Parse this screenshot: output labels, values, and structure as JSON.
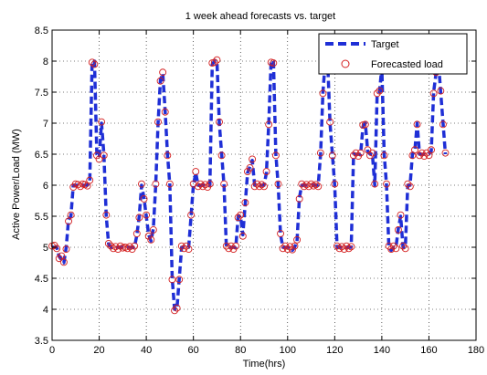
{
  "chart_data": {
    "type": "line",
    "title": "1 week ahead forecasts vs. target",
    "xlabel": "Time(hrs)",
    "ylabel": "Active Power/Load (MW)",
    "xlim": [
      0,
      180
    ],
    "ylim": [
      3.5,
      8.5
    ],
    "xticks": [
      0,
      20,
      40,
      60,
      80,
      100,
      120,
      140,
      160,
      180
    ],
    "yticks": [
      3.5,
      4,
      4.5,
      5,
      5.5,
      6,
      6.5,
      7,
      7.5,
      8,
      8.5
    ],
    "xtick_labels": [
      "0",
      "20",
      "40",
      "60",
      "80",
      "100",
      "120",
      "140",
      "160",
      "180"
    ],
    "ytick_labels": [
      "3.5",
      "4",
      "4.5",
      "5",
      "5.5",
      "6",
      "6.5",
      "7",
      "7.5",
      "8",
      "8.5"
    ],
    "grid": true,
    "legend_position": "top-right",
    "series": [
      {
        "name": "Target",
        "style": "dashed-line",
        "color": "#1f2fd6",
        "x": [
          0,
          1,
          2,
          3,
          4,
          5,
          6,
          7,
          8,
          9,
          10,
          11,
          12,
          13,
          14,
          15,
          16,
          17,
          18,
          19,
          20,
          21,
          22,
          23,
          24,
          25,
          26,
          27,
          28,
          29,
          30,
          31,
          32,
          33,
          34,
          35,
          36,
          37,
          38,
          39,
          40,
          41,
          42,
          43,
          44,
          45,
          46,
          47,
          48,
          49,
          50,
          51,
          52,
          53,
          54,
          55,
          56,
          57,
          58,
          59,
          60,
          61,
          62,
          63,
          64,
          65,
          66,
          67,
          68,
          69,
          70,
          71,
          72,
          73,
          74,
          75,
          76,
          77,
          78,
          79,
          80,
          81,
          82,
          83,
          84,
          85,
          86,
          87,
          88,
          89,
          90,
          91,
          92,
          93,
          94,
          95,
          96,
          97,
          98,
          99,
          100,
          101,
          102,
          103,
          104,
          105,
          106,
          107,
          108,
          109,
          110,
          111,
          112,
          113,
          114,
          115,
          116,
          117,
          118,
          119,
          120,
          121,
          122,
          123,
          124,
          125,
          126,
          127,
          128,
          129,
          130,
          131,
          132,
          133,
          134,
          135,
          136,
          137,
          138,
          139,
          140,
          141,
          142,
          143,
          144,
          145,
          146,
          147,
          148,
          149,
          150,
          151,
          152,
          153,
          154,
          155,
          156,
          157,
          158,
          159,
          160,
          161,
          162,
          163,
          164,
          165,
          166,
          167
        ],
        "values": [
          5.0,
          5.0,
          5.0,
          4.85,
          4.8,
          4.75,
          5.0,
          5.45,
          5.5,
          6.0,
          6.0,
          6.0,
          6.0,
          6.0,
          6.0,
          6.0,
          6.05,
          8.0,
          8.0,
          6.5,
          6.45,
          7.0,
          6.5,
          5.5,
          5.05,
          5.0,
          5.0,
          5.0,
          5.0,
          5.0,
          5.0,
          5.0,
          5.0,
          5.0,
          5.0,
          5.0,
          5.2,
          5.5,
          6.0,
          5.8,
          5.5,
          5.2,
          5.1,
          5.3,
          6.0,
          7.0,
          7.7,
          7.8,
          7.2,
          6.5,
          6.0,
          4.5,
          4.0,
          4.0,
          4.5,
          5.0,
          5.0,
          5.0,
          5.0,
          5.5,
          6.0,
          6.2,
          6.0,
          6.0,
          6.0,
          6.0,
          6.0,
          6.0,
          7.95,
          8.0,
          8.0,
          7.0,
          6.5,
          6.0,
          5.0,
          5.0,
          5.0,
          5.0,
          5.0,
          5.5,
          5.5,
          5.2,
          5.7,
          6.2,
          6.3,
          6.4,
          6.0,
          6.0,
          6.0,
          6.0,
          6.0,
          6.2,
          7.0,
          8.0,
          8.0,
          6.5,
          6.0,
          5.2,
          5.0,
          5.0,
          5.0,
          5.0,
          4.95,
          5.0,
          5.1,
          5.8,
          6.0,
          6.0,
          6.0,
          6.0,
          6.0,
          6.0,
          6.0,
          6.0,
          6.5,
          7.5,
          8.0,
          8.0,
          7.0,
          6.5,
          6.0,
          5.0,
          5.0,
          5.0,
          5.0,
          5.0,
          5.0,
          5.0,
          6.5,
          6.5,
          6.5,
          6.5,
          6.95,
          7.0,
          6.55,
          6.5,
          6.5,
          6.0,
          7.45,
          7.5,
          7.9,
          6.5,
          6.0,
          5.0,
          4.95,
          5.0,
          5.0,
          5.3,
          5.5,
          5.0,
          5.0,
          6.0,
          6.0,
          6.5,
          6.55,
          7.0,
          6.5,
          6.5,
          6.5,
          6.5,
          6.5,
          6.55,
          7.5,
          7.8,
          8.0,
          7.5,
          7.0,
          6.5
        ]
      },
      {
        "name": "Forecasted load",
        "style": "circle-markers",
        "color": "#d42020",
        "x": [
          0,
          1,
          2,
          3,
          4,
          5,
          6,
          7,
          8,
          9,
          10,
          11,
          12,
          13,
          14,
          15,
          16,
          17,
          18,
          19,
          20,
          21,
          22,
          23,
          24,
          25,
          26,
          27,
          28,
          29,
          30,
          31,
          32,
          33,
          34,
          35,
          36,
          37,
          38,
          39,
          40,
          41,
          42,
          43,
          44,
          45,
          46,
          47,
          48,
          49,
          50,
          51,
          52,
          53,
          54,
          55,
          56,
          57,
          58,
          59,
          60,
          61,
          62,
          63,
          64,
          65,
          66,
          67,
          68,
          69,
          70,
          71,
          72,
          73,
          74,
          75,
          76,
          77,
          78,
          79,
          80,
          81,
          82,
          83,
          84,
          85,
          86,
          87,
          88,
          89,
          90,
          91,
          92,
          93,
          94,
          95,
          96,
          97,
          98,
          99,
          100,
          101,
          102,
          103,
          104,
          105,
          106,
          107,
          108,
          109,
          110,
          111,
          112,
          113,
          114,
          115,
          116,
          117,
          118,
          119,
          120,
          121,
          122,
          123,
          124,
          125,
          126,
          127,
          128,
          129,
          130,
          131,
          132,
          133,
          134,
          135,
          136,
          137,
          138,
          139,
          140,
          141,
          142,
          143,
          144,
          145,
          146,
          147,
          148,
          149,
          150,
          151,
          152,
          153,
          154,
          155,
          156,
          157,
          158,
          159,
          160,
          161,
          162,
          163,
          164,
          165,
          166,
          167
        ],
        "values": [
          5.02,
          5.03,
          4.98,
          4.82,
          4.86,
          4.76,
          4.97,
          5.42,
          5.52,
          5.97,
          6.02,
          6.01,
          5.98,
          6.02,
          6.01,
          5.99,
          6.08,
          7.98,
          7.95,
          6.48,
          6.42,
          7.02,
          6.48,
          5.52,
          5.06,
          5.02,
          4.98,
          5.01,
          4.97,
          5.02,
          4.99,
          5.0,
          4.98,
          5.01,
          4.97,
          5.02,
          5.22,
          5.48,
          6.02,
          5.78,
          5.52,
          5.18,
          5.12,
          5.28,
          6.02,
          7.02,
          7.68,
          7.82,
          7.18,
          6.48,
          6.02,
          4.48,
          3.98,
          4.02,
          4.48,
          5.02,
          4.98,
          5.02,
          4.97,
          5.52,
          6.02,
          6.22,
          5.98,
          6.02,
          5.98,
          6.01,
          5.97,
          6.02,
          7.97,
          7.98,
          8.02,
          7.02,
          6.48,
          6.02,
          5.02,
          4.98,
          5.02,
          4.97,
          5.02,
          5.48,
          5.52,
          5.18,
          5.72,
          6.22,
          6.28,
          6.42,
          5.98,
          6.02,
          5.98,
          6.01,
          5.98,
          6.22,
          6.98,
          7.98,
          7.97,
          6.48,
          6.02,
          5.22,
          4.98,
          5.02,
          4.97,
          5.01,
          4.96,
          5.02,
          5.12,
          5.78,
          6.02,
          5.98,
          6.01,
          5.98,
          6.02,
          5.99,
          6.01,
          5.98,
          6.52,
          7.48,
          7.98,
          7.97,
          7.02,
          6.48,
          6.02,
          5.02,
          4.98,
          5.01,
          4.97,
          5.02,
          4.98,
          5.01,
          6.48,
          6.52,
          6.47,
          6.52,
          6.97,
          6.98,
          6.57,
          6.48,
          6.52,
          6.02,
          7.48,
          7.52,
          7.88,
          6.48,
          6.02,
          5.02,
          4.97,
          5.02,
          4.98,
          5.28,
          5.52,
          5.02,
          4.98,
          6.02,
          5.98,
          6.48,
          6.57,
          6.98,
          6.48,
          6.52,
          6.47,
          6.52,
          6.48,
          6.57,
          7.48,
          7.82,
          7.98,
          7.52,
          6.98,
          6.52
        ]
      }
    ]
  }
}
